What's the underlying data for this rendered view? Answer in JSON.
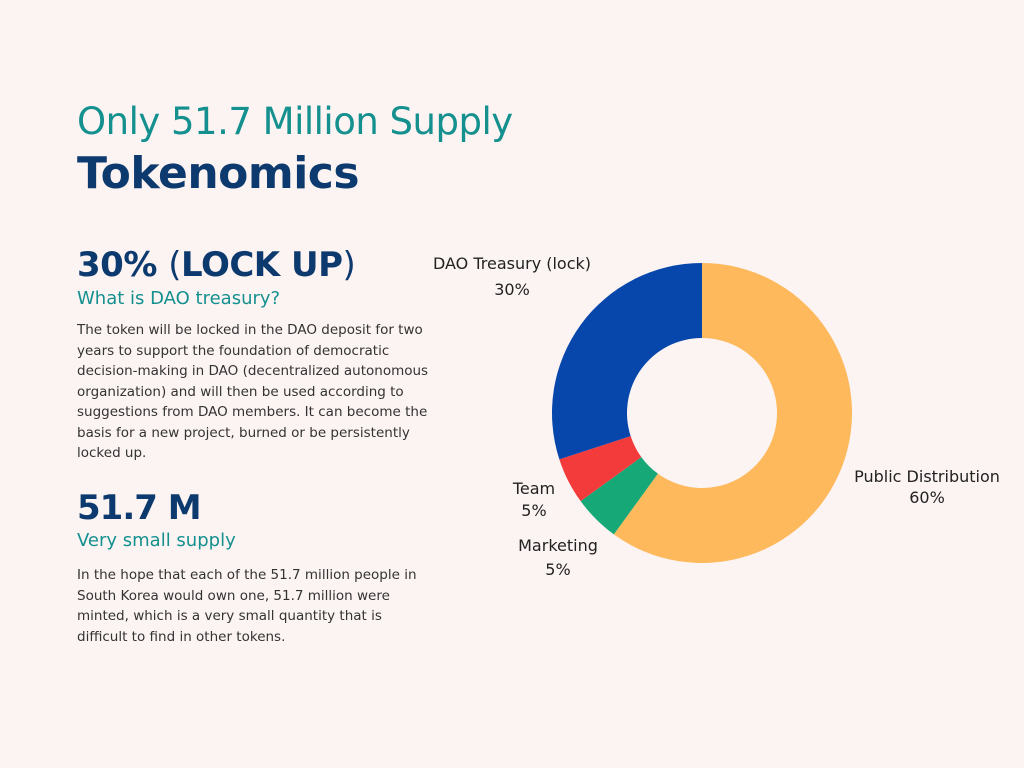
{
  "header": {
    "subtitle": "Only 51.7 Million Supply",
    "title": "Tokenomics"
  },
  "lockup": {
    "pct": "30%",
    "open_paren": "(",
    "label": "LOCK UP",
    "close_paren": ")",
    "question": "What is DAO treasury?",
    "body": "The token will be locked in the DAO deposit for two years to support the foundation of democratic decision-making in DAO (decentralized autonomous organization) and will then be used according to suggestions from DAO members. It can become the basis for a new project, burned or  be persistently locked up."
  },
  "supply": {
    "heading": "51.7 M",
    "subheading": "Very small supply",
    "body": "In the hope that each of the 51.7 million people in South Korea would own one, 51.7 million were minted, which is a very small quantity that is difficult to find in other tokens."
  },
  "chart_data": {
    "type": "pie",
    "donut": true,
    "start": "12 o'clock, clockwise",
    "slices": [
      {
        "label": "Public Distribution",
        "value": 60,
        "value_label": "60%",
        "color": "#fdb95c"
      },
      {
        "label": "Marketing",
        "value": 5,
        "value_label": "5%",
        "color": "#16a877"
      },
      {
        "label": "Team",
        "value": 5,
        "value_label": "5%",
        "color": "#f43b3b"
      },
      {
        "label": "DAO Treasury (lock)",
        "value": 30,
        "value_label": "30%",
        "color": "#0747ab"
      }
    ]
  }
}
